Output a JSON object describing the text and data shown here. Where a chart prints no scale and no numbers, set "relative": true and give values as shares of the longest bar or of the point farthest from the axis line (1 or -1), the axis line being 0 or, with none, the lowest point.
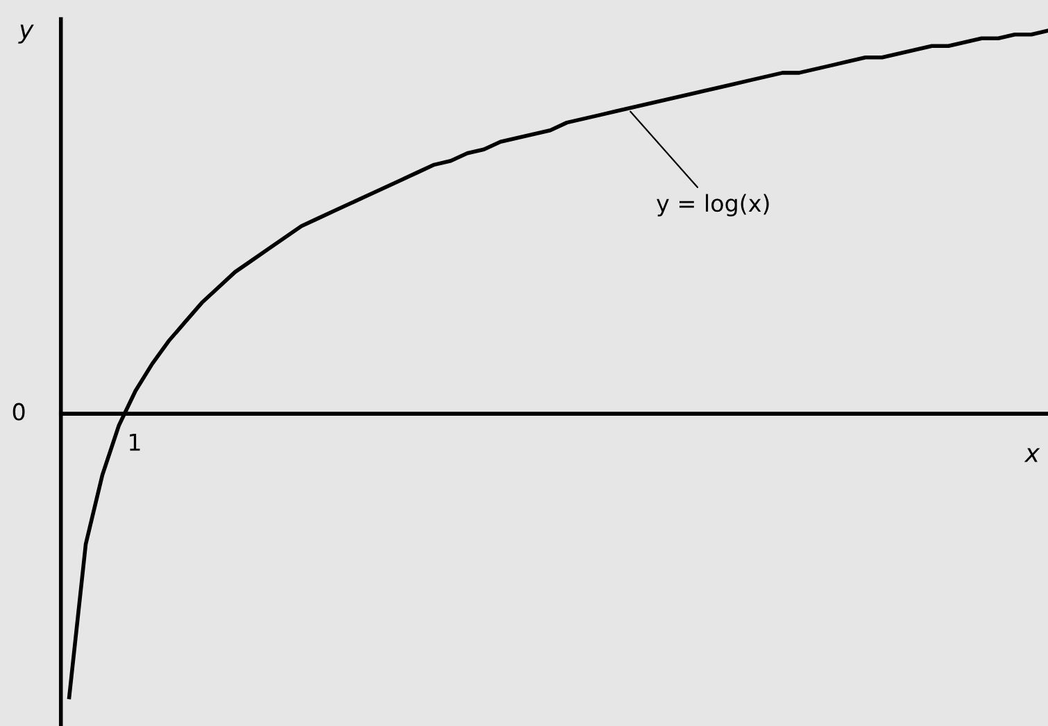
{
  "chart_data": {
    "type": "line",
    "relative": true,
    "xlabel": "x",
    "ylabel": "y",
    "categories": [
      null,
      null,
      null,
      null,
      null,
      null,
      null,
      null,
      null,
      null,
      null,
      null,
      null,
      null,
      null,
      null,
      null,
      null,
      null,
      null,
      null,
      null,
      null,
      null,
      null,
      null,
      null,
      null,
      null,
      null,
      null,
      null,
      null,
      null,
      null,
      null,
      null,
      null,
      null,
      null,
      null,
      null,
      null,
      null,
      null,
      null,
      null,
      null,
      null,
      null,
      null,
      null,
      null,
      null,
      null,
      null,
      null,
      null,
      null,
      null
    ],
    "series": [
      {
        "color": "#000000",
        "values": [
          -0.74,
          -0.34,
          -0.16,
          -0.03,
          0.06,
          0.13,
          0.19,
          0.24,
          0.29,
          0.33,
          0.37,
          0.4,
          0.43,
          0.46,
          0.49,
          0.51,
          0.53,
          0.55,
          0.57,
          0.59,
          0.61,
          0.63,
          0.65,
          0.66,
          0.68,
          0.69,
          0.71,
          0.72,
          0.73,
          0.74,
          0.76,
          0.77,
          0.78,
          0.79,
          0.8,
          0.81,
          0.82,
          0.83,
          0.84,
          0.85,
          0.86,
          0.87,
          0.88,
          0.89,
          0.89,
          0.9,
          0.91,
          0.92,
          0.93,
          0.93,
          0.94,
          0.95,
          0.96,
          0.96,
          0.97,
          0.98,
          0.98,
          0.99,
          0.99,
          1
        ]
      }
    ],
    "annotations": [
      "y = log(x)",
      "0",
      "1"
    ],
    "legend": false,
    "marker": "none",
    "line_style": "solid"
  }
}
